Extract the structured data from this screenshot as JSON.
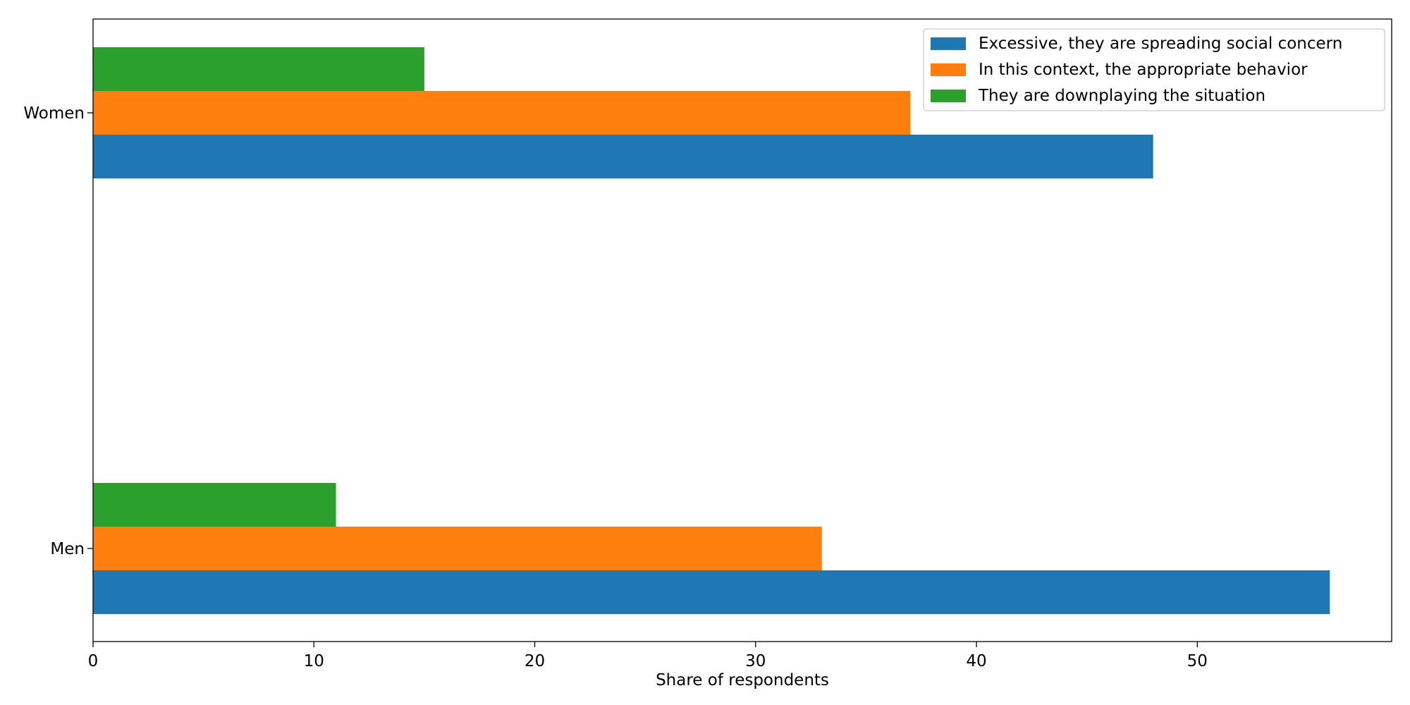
{
  "chart_data": {
    "type": "bar",
    "orientation": "horizontal",
    "categories": [
      "Men",
      "Women"
    ],
    "series": [
      {
        "name": "Excessive, they are spreading social concern",
        "values": [
          56,
          48
        ],
        "color": "#1f77b4"
      },
      {
        "name": "In this context, the appropriate behavior",
        "values": [
          33,
          37
        ],
        "color": "#ff7f0e"
      },
      {
        "name": "They are downplaying the situation",
        "values": [
          11,
          15
        ],
        "color": "#2ca02c"
      }
    ],
    "xlabel": "Share of respondents",
    "ylabel": "",
    "xlim": [
      0,
      58.8
    ],
    "xticks": [
      0,
      10,
      20,
      30,
      40,
      50
    ],
    "legend_position": "top-right",
    "grid": false
  }
}
